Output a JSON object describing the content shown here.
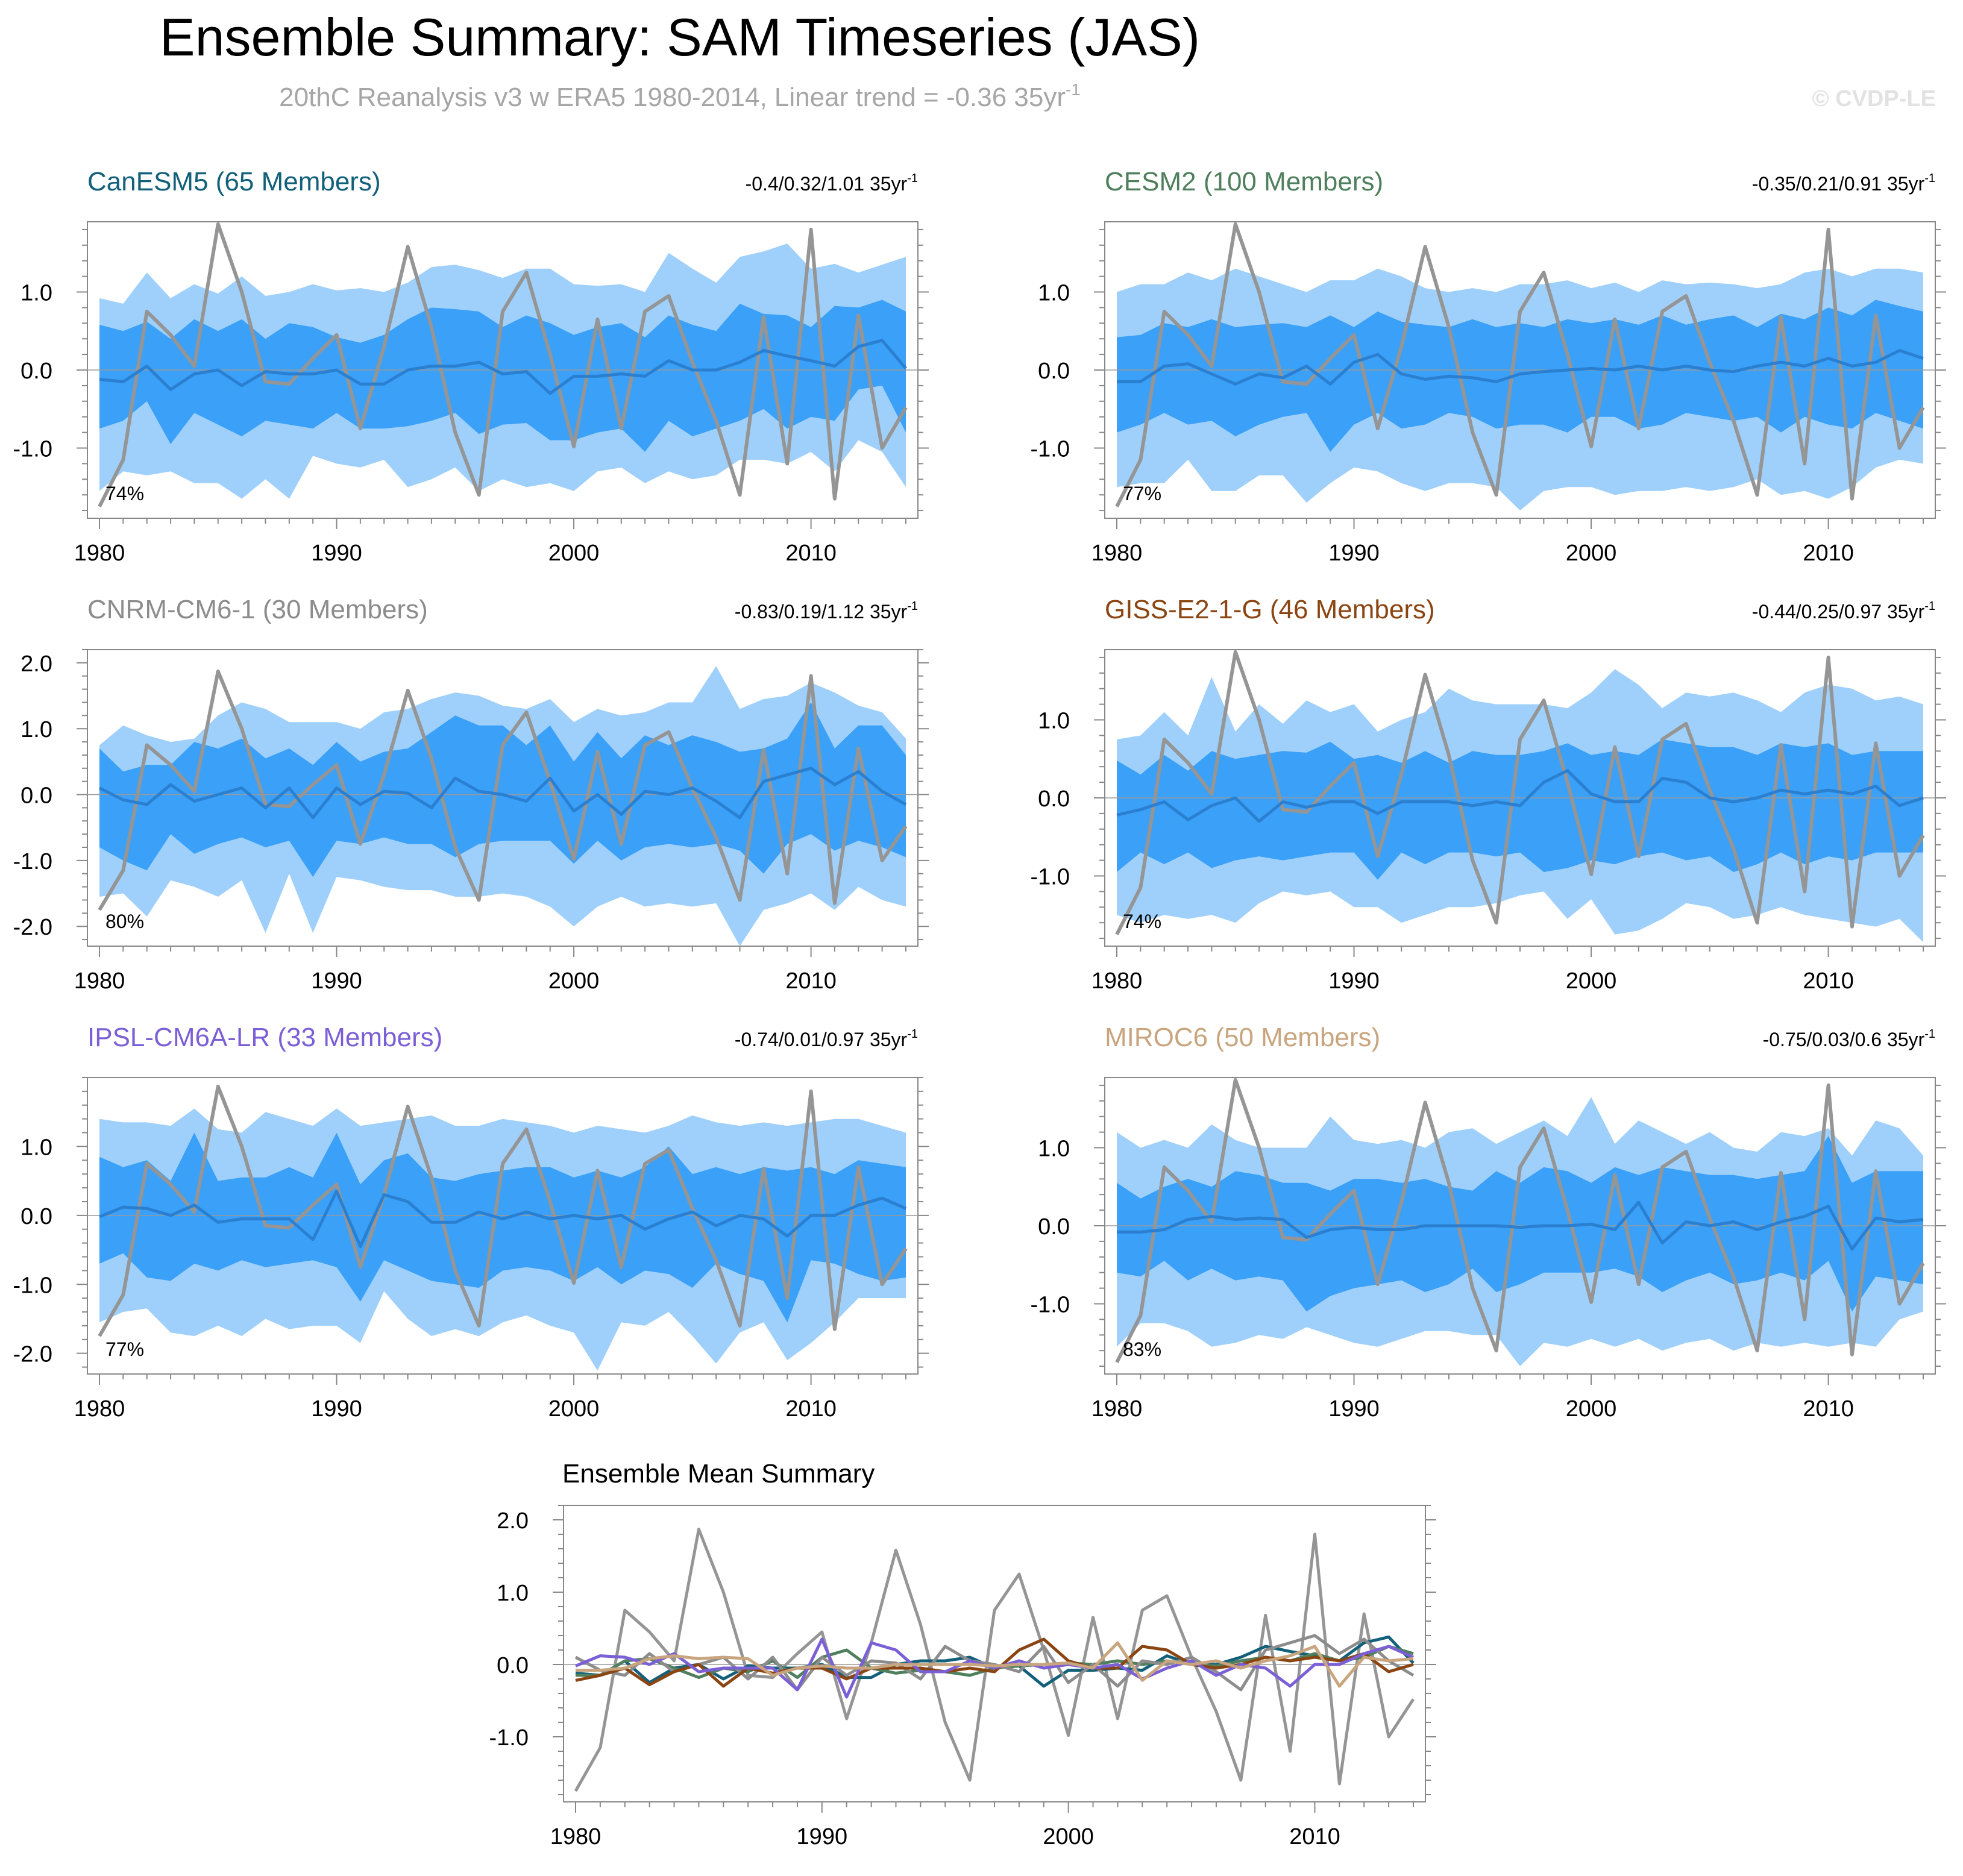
{
  "figure": {
    "title": "Ensemble Summary: SAM Timeseries (JAS)",
    "subtitle_main": "20thC Reanalysis v3 w ERA5 1980-2014, Linear trend = -0.36 35yr",
    "subtitle_sup": "-1",
    "watermark": "© CVDP-LE"
  },
  "colors": {
    "band_outer": "#9fd0fb",
    "band_inner": "#3aa0f8",
    "ensemble_mean": "#2a7fd0",
    "observations": "#959595",
    "zero_line": "#9a9a9a",
    "frame": "#888888"
  },
  "chart_data": [
    {
      "type": "area",
      "title": "CanESM5 (65 Members)",
      "title_color": "#12607a",
      "trend_label": "-0.4/0.32/1.01 35yr",
      "trend_sup": "-1",
      "percent_label": "74%",
      "ylim": [
        -1.9,
        1.9
      ],
      "yticks": [
        1.0,
        0.0,
        -1.0
      ],
      "yticklabels": [
        "1.0",
        "0.0",
        "-1.0"
      ],
      "inner_hi": [
        0.58,
        0.5,
        0.62,
        0.4,
        0.65,
        0.5,
        0.65,
        0.4,
        0.6,
        0.55,
        0.42,
        0.35,
        0.45,
        0.65,
        0.8,
        0.78,
        0.75,
        0.55,
        0.7,
        0.6,
        0.45,
        0.55,
        0.6,
        0.42,
        0.7,
        0.58,
        0.5,
        0.85,
        0.72,
        0.7,
        0.55,
        0.82,
        0.8,
        0.9,
        0.75
      ],
      "inner_lo": [
        -0.75,
        -0.65,
        -0.4,
        -0.95,
        -0.55,
        -0.7,
        -0.85,
        -0.65,
        -0.7,
        -0.75,
        -0.55,
        -0.75,
        -0.75,
        -0.72,
        -0.65,
        -0.55,
        -0.82,
        -0.7,
        -0.68,
        -0.9,
        -0.9,
        -0.8,
        -0.75,
        -1.05,
        -0.65,
        -0.85,
        -0.75,
        -0.65,
        -0.5,
        -0.75,
        -0.6,
        -0.65,
        -0.25,
        -0.2,
        -0.8
      ],
      "outer_hi": [
        0.92,
        0.85,
        1.25,
        0.92,
        1.1,
        0.98,
        1.2,
        0.95,
        1.0,
        1.1,
        1.02,
        1.05,
        1.0,
        1.12,
        1.32,
        1.35,
        1.28,
        1.18,
        1.3,
        1.3,
        1.1,
        1.08,
        1.1,
        1.0,
        1.5,
        1.3,
        1.12,
        1.45,
        1.52,
        1.62,
        1.3,
        1.36,
        1.25,
        1.35,
        1.45
      ],
      "outer_lo": [
        -1.55,
        -1.3,
        -1.35,
        -1.3,
        -1.45,
        -1.45,
        -1.65,
        -1.4,
        -1.65,
        -1.1,
        -1.2,
        -1.25,
        -1.15,
        -1.5,
        -1.4,
        -1.25,
        -1.55,
        -1.4,
        -1.5,
        -1.45,
        -1.55,
        -1.3,
        -1.25,
        -1.45,
        -1.3,
        -1.4,
        -1.35,
        -1.15,
        -1.15,
        -1.2,
        -1.05,
        -1.3,
        -0.9,
        -1.05,
        -1.5
      ],
      "ens_mean": [
        -0.12,
        -0.15,
        0.05,
        -0.25,
        -0.05,
        0.0,
        -0.2,
        -0.02,
        -0.05,
        -0.05,
        0.0,
        -0.18,
        -0.18,
        0.0,
        0.05,
        0.05,
        0.1,
        -0.05,
        -0.02,
        -0.3,
        -0.08,
        -0.08,
        -0.05,
        -0.08,
        0.12,
        0.0,
        0.0,
        0.1,
        0.25,
        0.18,
        0.12,
        0.05,
        0.3,
        0.38,
        0.02
      ]
    },
    {
      "type": "area",
      "title": "CESM2 (100 Members)",
      "title_color": "#4f7f5c",
      "trend_label": "-0.35/0.21/0.91 35yr",
      "trend_sup": "-1",
      "percent_label": "77%",
      "ylim": [
        -1.9,
        1.9
      ],
      "yticks": [
        1.0,
        0.0,
        -1.0
      ],
      "yticklabels": [
        "1.0",
        "0.0",
        "-1.0"
      ],
      "inner_hi": [
        0.42,
        0.45,
        0.6,
        0.55,
        0.65,
        0.55,
        0.58,
        0.6,
        0.55,
        0.7,
        0.55,
        0.75,
        0.62,
        0.58,
        0.55,
        0.65,
        0.55,
        0.6,
        0.55,
        0.65,
        0.6,
        0.65,
        0.58,
        0.7,
        0.58,
        0.65,
        0.7,
        0.55,
        0.72,
        0.65,
        0.8,
        0.7,
        0.9,
        0.82,
        0.75
      ],
      "inner_lo": [
        -0.8,
        -0.7,
        -0.55,
        -0.7,
        -0.65,
        -0.85,
        -0.7,
        -0.6,
        -0.55,
        -1.05,
        -0.7,
        -0.55,
        -0.75,
        -0.7,
        -0.55,
        -0.6,
        -0.75,
        -0.7,
        -0.7,
        -0.8,
        -0.6,
        -0.6,
        -0.75,
        -0.7,
        -0.55,
        -0.6,
        -0.65,
        -0.6,
        -0.8,
        -0.6,
        -0.7,
        -0.75,
        -0.55,
        -0.65,
        -0.75
      ],
      "outer_hi": [
        1.0,
        1.1,
        1.1,
        1.25,
        1.15,
        1.3,
        1.2,
        1.1,
        1.0,
        1.15,
        1.15,
        1.3,
        1.2,
        1.05,
        1.0,
        1.05,
        1.0,
        1.1,
        1.1,
        1.15,
        1.05,
        1.12,
        1.0,
        1.15,
        1.1,
        1.12,
        1.1,
        1.05,
        1.1,
        1.25,
        1.3,
        1.2,
        1.3,
        1.3,
        1.25
      ],
      "outer_lo": [
        -1.5,
        -1.45,
        -1.45,
        -1.15,
        -1.55,
        -1.55,
        -1.35,
        -1.35,
        -1.7,
        -1.45,
        -1.25,
        -1.3,
        -1.45,
        -1.55,
        -1.45,
        -1.45,
        -1.5,
        -1.8,
        -1.55,
        -1.5,
        -1.5,
        -1.6,
        -1.55,
        -1.55,
        -1.5,
        -1.55,
        -1.5,
        -1.4,
        -1.6,
        -1.55,
        -1.65,
        -1.5,
        -1.25,
        -1.15,
        -1.2
      ],
      "ens_mean": [
        -0.15,
        -0.15,
        0.05,
        0.08,
        -0.05,
        -0.18,
        -0.05,
        -0.1,
        0.05,
        -0.18,
        0.1,
        0.2,
        -0.05,
        -0.12,
        -0.08,
        -0.1,
        -0.15,
        -0.05,
        -0.02,
        0.0,
        0.02,
        0.0,
        0.05,
        0.0,
        0.05,
        0.0,
        -0.02,
        0.05,
        0.1,
        0.05,
        0.15,
        0.05,
        0.1,
        0.25,
        0.15
      ]
    },
    {
      "type": "area",
      "title": "CNRM-CM6-1 (30 Members)",
      "title_color": "#8c8c8c",
      "trend_label": "-0.83/0.19/1.12 35yr",
      "trend_sup": "-1",
      "percent_label": "80%",
      "ylim": [
        -2.3,
        2.2
      ],
      "yticks": [
        2.0,
        1.0,
        0.0,
        -1.0,
        -2.0
      ],
      "yticklabels": [
        "2.0",
        "1.0",
        "0.0",
        "-1.0",
        "-2.0"
      ],
      "inner_hi": [
        0.7,
        0.35,
        0.45,
        0.45,
        0.8,
        0.7,
        0.85,
        0.55,
        0.7,
        0.45,
        0.8,
        0.5,
        0.65,
        0.7,
        0.95,
        1.2,
        1.05,
        1.05,
        0.75,
        1.05,
        0.5,
        0.95,
        0.55,
        0.9,
        0.75,
        0.9,
        0.8,
        0.65,
        0.7,
        0.85,
        1.4,
        0.7,
        1.05,
        1.05,
        0.6
      ],
      "inner_lo": [
        -0.8,
        -1.0,
        -1.15,
        -0.6,
        -0.9,
        -0.75,
        -0.65,
        -0.8,
        -0.7,
        -1.25,
        -0.7,
        -0.75,
        -0.65,
        -0.75,
        -0.75,
        -0.95,
        -0.75,
        -0.7,
        -0.7,
        -0.7,
        -1.05,
        -0.7,
        -1.0,
        -0.8,
        -0.75,
        -0.8,
        -0.75,
        -0.85,
        -1.2,
        -0.75,
        -0.6,
        -0.85,
        -0.7,
        -0.8,
        -0.95
      ],
      "outer_hi": [
        0.75,
        1.05,
        0.9,
        0.8,
        0.85,
        1.2,
        1.4,
        1.3,
        1.1,
        1.1,
        1.1,
        1.0,
        1.25,
        1.3,
        1.45,
        1.55,
        1.5,
        1.35,
        1.3,
        1.45,
        1.1,
        1.3,
        1.2,
        1.25,
        1.4,
        1.4,
        1.95,
        1.3,
        1.45,
        1.5,
        1.7,
        1.55,
        1.35,
        1.25,
        0.85
      ],
      "outer_lo": [
        -1.55,
        -1.5,
        -1.85,
        -1.3,
        -1.4,
        -1.55,
        -1.3,
        -2.1,
        -1.2,
        -2.1,
        -1.25,
        -1.3,
        -1.4,
        -1.45,
        -1.45,
        -1.55,
        -1.55,
        -1.5,
        -1.55,
        -1.7,
        -2.0,
        -1.7,
        -1.55,
        -1.7,
        -1.65,
        -1.7,
        -1.65,
        -2.3,
        -1.75,
        -1.65,
        -1.5,
        -1.75,
        -1.4,
        -1.6,
        -1.7
      ],
      "ens_mean": [
        0.1,
        -0.08,
        -0.15,
        0.15,
        -0.1,
        0.0,
        0.1,
        -0.2,
        0.1,
        -0.35,
        0.1,
        -0.15,
        0.05,
        0.02,
        -0.2,
        0.25,
        0.05,
        0.0,
        -0.1,
        0.25,
        -0.25,
        0.0,
        -0.3,
        0.05,
        0.0,
        0.1,
        -0.1,
        -0.35,
        0.2,
        0.3,
        0.4,
        0.15,
        0.35,
        0.05,
        -0.15
      ]
    },
    {
      "type": "area",
      "title": "GISS-E2-1-G (46 Members)",
      "title_color": "#8b4513",
      "trend_label": "-0.44/0.25/0.97 35yr",
      "trend_sup": "-1",
      "percent_label": "74%",
      "ylim": [
        -1.9,
        1.9
      ],
      "yticks": [
        1.0,
        0.0,
        -1.0
      ],
      "yticklabels": [
        "1.0",
        "0.0",
        "-1.0"
      ],
      "inner_hi": [
        0.48,
        0.3,
        0.55,
        0.35,
        0.6,
        0.5,
        0.55,
        0.6,
        0.58,
        0.72,
        0.5,
        0.55,
        0.45,
        0.6,
        0.45,
        0.6,
        0.55,
        0.55,
        0.6,
        0.7,
        0.55,
        0.6,
        0.55,
        0.75,
        0.7,
        0.65,
        0.65,
        0.55,
        0.7,
        0.65,
        0.7,
        0.55,
        0.6,
        0.6,
        0.6
      ],
      "inner_lo": [
        -0.95,
        -0.7,
        -0.85,
        -0.7,
        -0.9,
        -0.8,
        -0.75,
        -0.8,
        -0.75,
        -0.7,
        -0.7,
        -1.05,
        -0.7,
        -0.85,
        -0.7,
        -0.7,
        -0.75,
        -0.7,
        -0.95,
        -0.9,
        -0.8,
        -0.85,
        -0.75,
        -0.7,
        -0.8,
        -0.75,
        -0.95,
        -0.85,
        -0.7,
        -0.85,
        -0.75,
        -0.8,
        -0.7,
        -0.7,
        -0.7
      ],
      "outer_hi": [
        0.75,
        0.8,
        1.1,
        0.8,
        1.55,
        0.85,
        1.2,
        0.95,
        1.25,
        1.1,
        1.2,
        0.85,
        1.0,
        1.1,
        1.4,
        1.25,
        1.2,
        1.2,
        1.2,
        1.15,
        1.35,
        1.65,
        1.45,
        1.15,
        1.35,
        1.3,
        1.35,
        1.25,
        1.1,
        1.35,
        1.45,
        1.4,
        1.25,
        1.3,
        1.2
      ],
      "outer_lo": [
        -1.5,
        -1.6,
        -1.5,
        -1.55,
        -1.5,
        -1.6,
        -1.35,
        -1.2,
        -1.25,
        -1.2,
        -1.4,
        -1.4,
        -1.6,
        -1.5,
        -1.4,
        -1.4,
        -1.35,
        -1.25,
        -1.2,
        -1.55,
        -1.3,
        -1.75,
        -1.7,
        -1.55,
        -1.35,
        -1.4,
        -1.55,
        -1.5,
        -1.4,
        -1.5,
        -1.55,
        -1.6,
        -1.65,
        -1.55,
        -1.85
      ],
      "ens_mean": [
        -0.22,
        -0.15,
        -0.05,
        -0.28,
        -0.1,
        0.0,
        -0.3,
        -0.05,
        -0.12,
        -0.05,
        -0.05,
        -0.2,
        -0.05,
        -0.05,
        -0.05,
        -0.1,
        -0.05,
        -0.1,
        0.2,
        0.35,
        0.05,
        -0.05,
        -0.05,
        0.25,
        0.2,
        0.0,
        -0.05,
        0.0,
        0.1,
        0.05,
        0.1,
        0.05,
        0.15,
        -0.1,
        0.0
      ]
    },
    {
      "type": "area",
      "title": "IPSL-CM6A-LR (33 Members)",
      "title_color": "#7b5fd6",
      "trend_label": "-0.74/0.01/0.97 35yr",
      "trend_sup": "-1",
      "percent_label": "77%",
      "ylim": [
        -2.3,
        2.0
      ],
      "yticks": [
        1.0,
        0.0,
        -1.0,
        -2.0
      ],
      "yticklabels": [
        "1.0",
        "0.0",
        "-1.0",
        "-2.0"
      ],
      "inner_hi": [
        0.85,
        0.7,
        0.8,
        0.5,
        1.2,
        0.5,
        0.55,
        0.55,
        0.7,
        0.55,
        1.2,
        0.45,
        0.8,
        0.9,
        0.55,
        0.5,
        0.6,
        0.65,
        0.7,
        0.7,
        0.55,
        0.65,
        0.55,
        0.7,
        1.0,
        0.6,
        0.7,
        0.6,
        0.7,
        0.65,
        0.7,
        0.6,
        0.8,
        0.75,
        0.7
      ],
      "inner_lo": [
        -0.7,
        -0.55,
        -0.9,
        -0.95,
        -0.7,
        -0.8,
        -0.65,
        -0.75,
        -0.7,
        -0.65,
        -0.75,
        -1.25,
        -0.65,
        -0.8,
        -0.95,
        -1.0,
        -1.05,
        -0.8,
        -0.75,
        -0.8,
        -0.95,
        -0.75,
        -1.0,
        -0.8,
        -0.85,
        -1.05,
        -0.7,
        -0.85,
        -0.95,
        -1.55,
        -0.65,
        -0.7,
        -0.85,
        -0.95,
        -0.9
      ],
      "outer_hi": [
        1.4,
        1.35,
        1.35,
        1.3,
        1.55,
        1.25,
        1.2,
        1.5,
        1.4,
        1.3,
        1.55,
        1.3,
        1.35,
        1.4,
        1.45,
        1.3,
        1.3,
        1.4,
        1.35,
        1.3,
        1.2,
        1.3,
        1.25,
        1.2,
        1.3,
        1.45,
        1.35,
        1.3,
        1.35,
        1.3,
        1.35,
        1.4,
        1.4,
        1.3,
        1.2
      ],
      "outer_lo": [
        -1.55,
        -1.4,
        -1.35,
        -1.7,
        -1.75,
        -1.6,
        -1.75,
        -1.5,
        -1.65,
        -1.6,
        -1.6,
        -1.85,
        -1.1,
        -1.5,
        -1.75,
        -1.65,
        -1.75,
        -1.55,
        -1.45,
        -1.6,
        -1.7,
        -2.25,
        -1.55,
        -1.6,
        -1.4,
        -1.75,
        -2.15,
        -1.7,
        -1.55,
        -2.1,
        -1.85,
        -1.55,
        -1.2,
        -1.2,
        -1.2
      ],
      "ens_mean": [
        -0.02,
        0.12,
        0.1,
        0.0,
        0.15,
        -0.1,
        -0.05,
        -0.05,
        -0.05,
        -0.35,
        0.35,
        -0.45,
        0.3,
        0.2,
        -0.1,
        -0.1,
        0.05,
        -0.05,
        0.05,
        -0.05,
        0.0,
        -0.05,
        0.0,
        -0.2,
        -0.05,
        0.05,
        -0.15,
        0.0,
        -0.05,
        -0.3,
        0.0,
        0.0,
        0.15,
        0.25,
        0.1
      ]
    },
    {
      "type": "area",
      "title": "MIROC6 (50 Members)",
      "title_color": "#c8a57e",
      "trend_label": "-0.75/0.03/0.6 35yr",
      "trend_sup": "-1",
      "percent_label": "83%",
      "ylim": [
        -1.9,
        1.9
      ],
      "yticks": [
        1.0,
        0.0,
        -1.0
      ],
      "yticklabels": [
        "1.0",
        "0.0",
        "-1.0"
      ],
      "inner_hi": [
        0.55,
        0.35,
        0.5,
        0.6,
        0.5,
        0.7,
        0.65,
        0.55,
        0.55,
        0.45,
        0.6,
        0.6,
        0.55,
        0.6,
        0.5,
        0.45,
        0.7,
        0.55,
        0.75,
        0.7,
        0.55,
        0.75,
        0.65,
        0.75,
        0.7,
        0.65,
        0.65,
        0.6,
        0.65,
        0.7,
        1.15,
        0.55,
        0.7,
        0.7,
        0.7
      ],
      "inner_lo": [
        -0.6,
        -0.65,
        -0.45,
        -0.7,
        -0.55,
        -0.7,
        -0.65,
        -0.7,
        -1.1,
        -0.9,
        -0.8,
        -0.75,
        -0.7,
        -0.85,
        -0.75,
        -0.55,
        -0.85,
        -0.75,
        -0.6,
        -0.6,
        -0.6,
        -0.55,
        -0.65,
        -0.85,
        -0.7,
        -0.6,
        -0.75,
        -0.7,
        -0.6,
        -0.7,
        -0.45,
        -1.1,
        -0.65,
        -0.7,
        -0.75
      ],
      "outer_hi": [
        1.2,
        1.0,
        1.1,
        1.0,
        1.3,
        1.1,
        1.0,
        1.0,
        1.0,
        1.4,
        1.1,
        1.05,
        1.1,
        1.0,
        1.2,
        1.25,
        1.05,
        1.2,
        1.35,
        1.15,
        1.65,
        1.05,
        1.35,
        1.2,
        1.05,
        1.2,
        1.0,
        0.95,
        1.2,
        1.15,
        1.25,
        0.9,
        1.35,
        1.25,
        0.9
      ],
      "outer_lo": [
        -1.55,
        -1.25,
        -1.25,
        -1.35,
        -1.55,
        -1.5,
        -1.4,
        -1.45,
        -1.3,
        -1.4,
        -1.5,
        -1.55,
        -1.45,
        -1.35,
        -1.35,
        -1.4,
        -1.4,
        -1.8,
        -1.5,
        -1.55,
        -1.45,
        -1.55,
        -1.45,
        -1.6,
        -1.5,
        -1.45,
        -1.6,
        -1.5,
        -1.55,
        -1.5,
        -1.55,
        -1.5,
        -1.55,
        -1.2,
        -1.1
      ],
      "ens_mean": [
        -0.08,
        -0.08,
        -0.05,
        0.08,
        0.12,
        0.08,
        0.1,
        0.08,
        -0.15,
        -0.05,
        -0.02,
        -0.05,
        -0.05,
        0.0,
        0.0,
        0.0,
        0.0,
        -0.02,
        0.0,
        0.0,
        0.02,
        -0.05,
        0.3,
        -0.22,
        0.05,
        0.0,
        0.05,
        -0.05,
        0.05,
        0.12,
        0.25,
        -0.3,
        0.1,
        0.05,
        0.08
      ]
    },
    {
      "type": "line",
      "title": "Ensemble Mean Summary",
      "ylim": [
        -1.9,
        2.2
      ],
      "yticks": [
        2.0,
        1.0,
        0.0,
        -1.0
      ],
      "yticklabels": [
        "2.0",
        "1.0",
        "0.0",
        "-1.0"
      ],
      "series_from_panels": [
        0,
        1,
        2,
        3,
        4,
        5
      ]
    }
  ],
  "shared": {
    "x": [
      1980,
      1981,
      1982,
      1983,
      1984,
      1985,
      1986,
      1987,
      1988,
      1989,
      1990,
      1991,
      1992,
      1993,
      1994,
      1995,
      1996,
      1997,
      1998,
      1999,
      2000,
      2001,
      2002,
      2003,
      2004,
      2005,
      2006,
      2007,
      2008,
      2009,
      2010,
      2011,
      2012,
      2013,
      2014
    ],
    "xticks": [
      1980,
      1990,
      2000,
      2010
    ],
    "xticklabels": [
      "1980",
      "1990",
      "2000",
      "2010"
    ],
    "observations": [
      -1.75,
      -1.15,
      0.75,
      0.45,
      0.05,
      1.87,
      1.0,
      -0.15,
      -0.18,
      0.15,
      0.45,
      -0.75,
      0.3,
      1.58,
      0.55,
      -0.8,
      -1.6,
      0.75,
      1.25,
      0.2,
      -0.98,
      0.65,
      -0.75,
      0.75,
      0.95,
      0.1,
      -0.65,
      -1.6,
      0.68,
      -1.2,
      1.8,
      -1.65,
      0.7,
      -1.0,
      -0.48
    ]
  }
}
